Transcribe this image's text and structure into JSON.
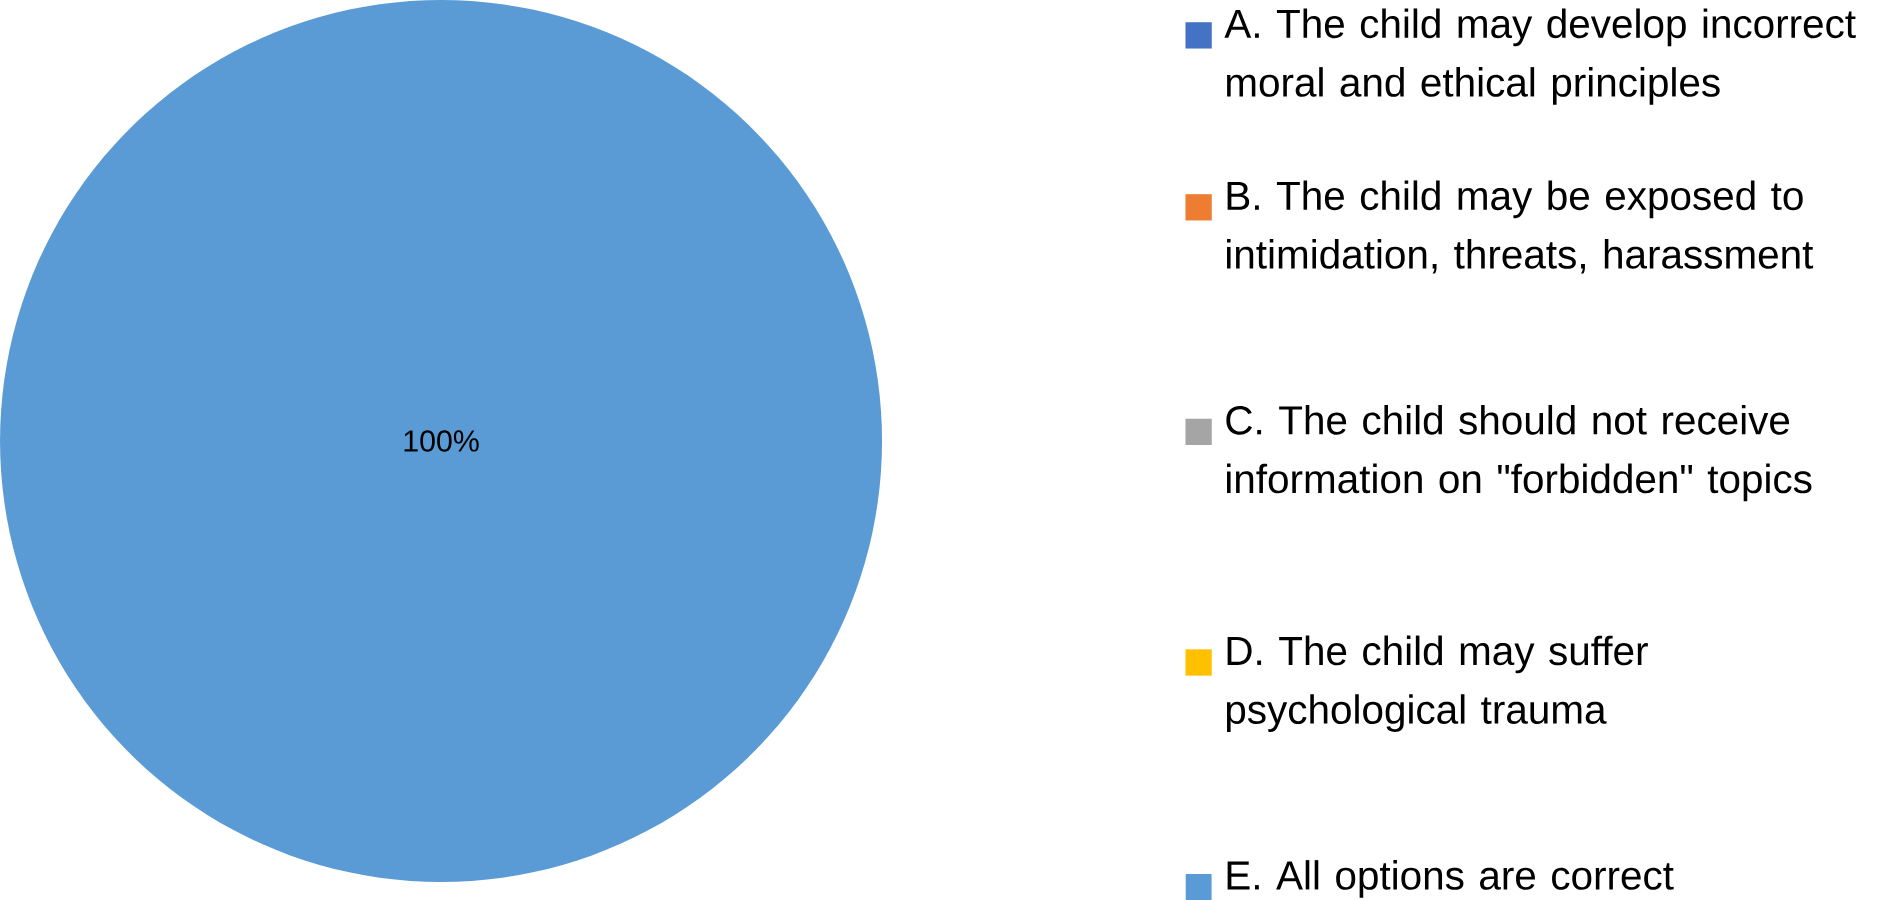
{
  "chart_data": {
    "type": "pie",
    "categories": [
      "A. The child may develop incorrect moral and ethical principles",
      "B. The child may be exposed to intimidation, threats, harassment",
      "C. The child should not receive information on \"forbidden\" topics",
      "D. The child may suffer psychological trauma",
      "E. All options are correct"
    ],
    "values": [
      0,
      0,
      0,
      0,
      100
    ],
    "colors": [
      "#4472c4",
      "#ed7d31",
      "#a5a5a5",
      "#ffc000",
      "#5b9bd5"
    ],
    "value_labels": [
      null,
      null,
      null,
      null,
      "100%"
    ],
    "legend": "right"
  }
}
